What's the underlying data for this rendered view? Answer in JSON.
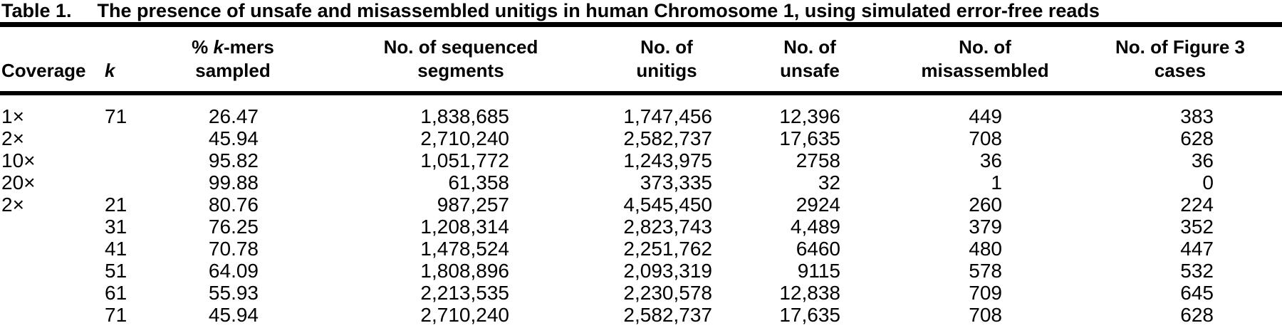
{
  "table": {
    "title": {
      "label": "Table 1.",
      "text": "The presence of unsafe and misassembled unitigs in human Chromosome 1, using simulated error-free reads"
    },
    "headers": {
      "coverage": "Coverage",
      "k": "k",
      "kmers": {
        "prefix": "% ",
        "italic": "k",
        "suffix": "-mers",
        "line2": "sampled"
      },
      "segments": {
        "line1": "No. of sequenced",
        "line2": "segments"
      },
      "unitigs": {
        "line1": "No. of",
        "line2": "unitigs"
      },
      "unsafe": {
        "line1": "No. of",
        "line2": "unsafe"
      },
      "misassembled": {
        "line1": "No. of",
        "line2": "misassembled"
      },
      "figure3": {
        "line1": "No. of Figure 3",
        "line2": "cases"
      }
    },
    "rows": [
      [
        "1×",
        "71",
        "26.47",
        "1,838,685",
        "1,747,456",
        "12,396",
        "449",
        "383"
      ],
      [
        "2×",
        "",
        "45.94",
        "2,710,240",
        "2,582,737",
        "17,635",
        "708",
        "628"
      ],
      [
        "10×",
        "",
        "95.82",
        "1,051,772",
        "1,243,975",
        "2758",
        "36",
        "36"
      ],
      [
        "20×",
        "",
        "99.88",
        "61,358",
        "373,335",
        "32",
        "1",
        "0"
      ],
      [
        "2×",
        "21",
        "80.76",
        "987,257",
        "4,545,450",
        "2924",
        "260",
        "224"
      ],
      [
        "",
        "31",
        "76.25",
        "1,208,314",
        "2,823,743",
        "4,489",
        "379",
        "352"
      ],
      [
        "",
        "41",
        "70.78",
        "1,478,524",
        "2,251,762",
        "6460",
        "480",
        "447"
      ],
      [
        "",
        "51",
        "64.09",
        "1,808,896",
        "2,093,319",
        "9115",
        "578",
        "532"
      ],
      [
        "",
        "61",
        "55.93",
        "2,213,535",
        "2,230,578",
        "12,838",
        "709",
        "645"
      ],
      [
        "",
        "71",
        "45.94",
        "2,710,240",
        "2,582,737",
        "17,635",
        "708",
        "628"
      ]
    ],
    "colors": {
      "text": "#000000",
      "background": "#ffffff",
      "rule": "#000000"
    }
  }
}
